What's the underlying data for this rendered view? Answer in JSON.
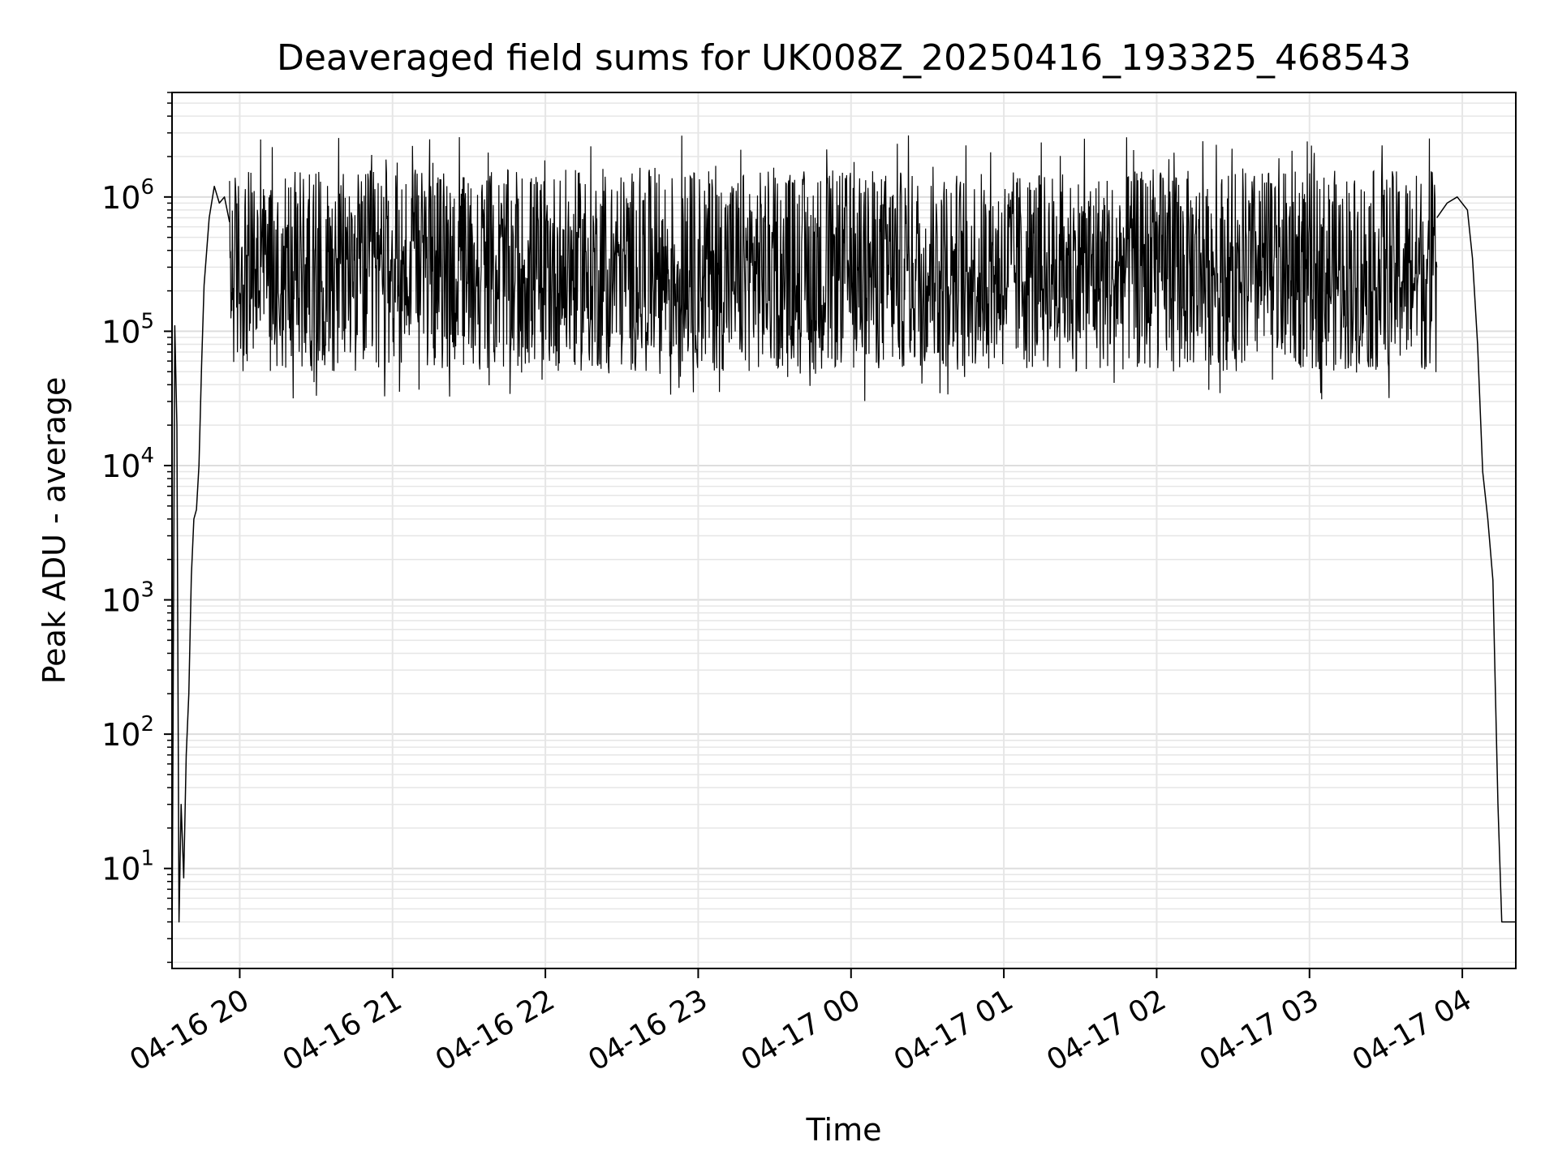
{
  "chart_data": {
    "type": "line",
    "title": "Deaveraged field sums for UK008Z_20250416_193325_468543",
    "xlabel": "Time",
    "ylabel": "Peak ADU - average",
    "yscale": "log",
    "grid": true,
    "legend": "none",
    "x_ticks": [
      "04-16 20",
      "04-16 21",
      "04-16 22",
      "04-16 23",
      "04-17 00",
      "04-17 01",
      "04-17 02",
      "04-17 03",
      "04-17 04"
    ],
    "y_ticks": [
      {
        "base": "10",
        "exp": "1"
      },
      {
        "base": "10",
        "exp": "2"
      },
      {
        "base": "10",
        "exp": "3"
      },
      {
        "base": "10",
        "exp": "4"
      },
      {
        "base": "10",
        "exp": "5"
      },
      {
        "base": "10",
        "exp": "6"
      }
    ],
    "xlim": [
      "2025-04-16 19:33:25",
      "2025-04-17 04:21:00"
    ],
    "ylim": [
      1.8,
      6000000
    ],
    "line_color": "#000000",
    "series": [
      {
        "x": [
          "2025-04-16 19:33:25",
          "2025-04-16 19:34:30",
          "2025-04-16 19:35:20",
          "2025-04-16 19:36:10",
          "2025-04-16 19:37:00",
          "2025-04-16 19:38:00",
          "2025-04-16 19:39:00",
          "2025-04-16 19:40:00",
          "2025-04-16 19:41:00",
          "2025-04-16 19:42:00",
          "2025-04-16 19:43:00",
          "2025-04-16 19:44:00",
          "2025-04-16 19:45:00",
          "2025-04-16 19:46:00",
          "2025-04-16 19:48:00",
          "2025-04-16 19:50:00",
          "2025-04-16 19:52:00",
          "2025-04-16 19:54:00",
          "2025-04-16 19:56:00"
        ],
        "y": [
          2,
          110000,
          20000,
          4,
          30,
          8.5,
          70,
          200,
          1500,
          4000,
          4700,
          10000,
          55000,
          220000,
          700000,
          1200000,
          900000,
          1000000,
          650000
        ]
      },
      {
        "x": [
          "2025-04-17 03:50:00",
          "2025-04-17 03:54:00",
          "2025-04-17 03:58:00",
          "2025-04-17 04:02:00",
          "2025-04-17 04:04:00",
          "2025-04-17 04:06:00",
          "2025-04-17 04:08:00",
          "2025-04-17 04:10:00",
          "2025-04-17 04:12:00",
          "2025-04-17 04:13:00",
          "2025-04-17 04:14:00",
          "2025-04-17 04:15:30",
          "2025-04-17 04:16:30",
          "2025-04-17 04:18:00",
          "2025-04-17 04:19:30",
          "2025-04-17 04:21:00"
        ],
        "y": [
          700000,
          900000,
          1000000,
          800000,
          350000,
          80000,
          9000,
          4000,
          1400,
          200,
          30,
          4,
          4,
          4,
          4,
          4
        ]
      }
    ],
    "noise_band": {
      "x_range": [
        "2025-04-16 19:56:00",
        "2025-04-17 03:50:00"
      ],
      "upper": 1600000,
      "lower": 50000,
      "spike_max": 2900000,
      "dip_min": 30000
    }
  }
}
